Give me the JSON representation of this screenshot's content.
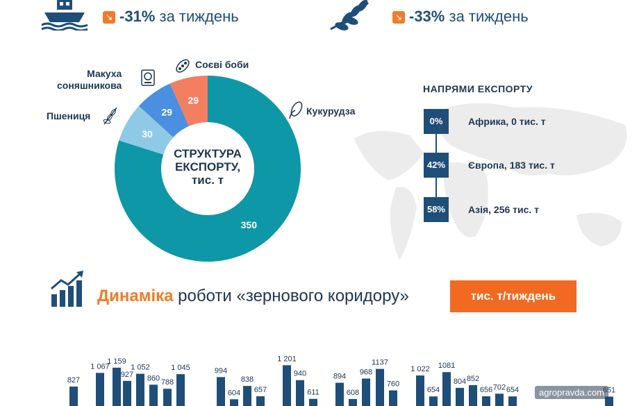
{
  "stats": [
    {
      "value": "-31%",
      "text": "за тиждень"
    },
    {
      "value": "-33%",
      "text": "за тиждень"
    }
  ],
  "stat_arrow": "↘",
  "structure": {
    "center_title": [
      "СТРУКТУРА",
      "ЕКСПОРТУ,",
      "тис. т"
    ],
    "labels": {
      "soy": "Соєві боби",
      "sunmeal": [
        "Макуха",
        "соняшникова"
      ],
      "wheat": "Пшениця",
      "corn": "Кукурудза"
    }
  },
  "directions": {
    "title": "НАПРЯМИ ЕКСПОРТУ",
    "items": [
      {
        "pct": "0%",
        "label": "Африка, 0 тис. т"
      },
      {
        "pct": "42%",
        "label": "Європа, 183 тис. т"
      },
      {
        "pct": "58%",
        "label": "Азія, 256 тис. т"
      }
    ]
  },
  "dynamics": {
    "title_bold": "Динаміка",
    "title_rest": " роботи «зернового коридору»",
    "unit": "тис. т/тиждень"
  },
  "watermark": "agropravda.com",
  "colors": {
    "navy": "#1f4e79",
    "teal": "#0e97a6",
    "lightblue": "#8ecae6",
    "blue": "#4a8fe0",
    "salmon": "#f47e60",
    "orange": "#f26a22"
  },
  "chart_data": [
    {
      "type": "pie",
      "title": "СТРУКТУРА ЕКСПОРТУ, тис. т",
      "categories": [
        "Кукурудза",
        "Пшениця",
        "Макуха соняшникова",
        "Соєві боби"
      ],
      "values": [
        350,
        30,
        29,
        29
      ],
      "colors": [
        "#0e97a6",
        "#8ecae6",
        "#4a8fe0",
        "#f47e60"
      ]
    },
    {
      "type": "bar",
      "title": "Динаміка роботи «зернового коридору»",
      "ylabel": "тис. т/тиждень",
      "values": [
        827,
        1067,
        1159,
        927,
        1052,
        860,
        788,
        1045,
        994,
        604,
        838,
        657,
        1201,
        940,
        611,
        894,
        608,
        968,
        1137,
        760,
        1022,
        654,
        1081,
        804,
        852,
        656,
        702,
        654,
        651
      ],
      "labels": [
        "827",
        "1 067",
        "1 159",
        "927",
        "1 052",
        "860",
        "788",
        "1 045",
        "994",
        "604",
        "838",
        "657",
        "1 201",
        "940",
        "611",
        "894",
        "608",
        "968",
        "1137",
        "760",
        "1 022",
        "654",
        "1081",
        "804",
        "852",
        "656",
        "702",
        "654",
        "651"
      ]
    }
  ]
}
